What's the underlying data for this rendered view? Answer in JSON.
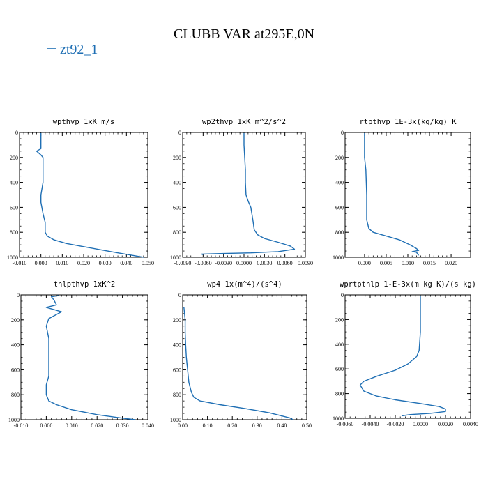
{
  "title": "CLUBB VAR at295E,0N",
  "legend": "zt92_1",
  "colors": {
    "series": "#1f6fb4",
    "axes": "#000000"
  },
  "chart_data": [
    {
      "type": "line",
      "title": "wpthvp  1xK m/s",
      "xlim": [
        -0.01,
        0.05
      ],
      "ylim": [
        0,
        1000
      ],
      "y_inverted": true,
      "xticks": [
        "-0.010",
        "0.000",
        "0.010",
        "0.020",
        "0.030",
        "0.040",
        "0.050"
      ],
      "yticks": [
        "0",
        "200",
        "400",
        "600",
        "800",
        "1000"
      ],
      "series": [
        {
          "points": [
            [
              0.0,
              5
            ],
            [
              0.0,
              130
            ],
            [
              -0.002,
              150
            ],
            [
              0.0,
              180
            ],
            [
              0.001,
              200
            ],
            [
              0.001,
              300
            ],
            [
              0.001,
              400
            ],
            [
              0.0,
              500
            ],
            [
              0.0,
              560
            ],
            [
              0.001,
              650
            ],
            [
              0.002,
              720
            ],
            [
              0.002,
              800
            ],
            [
              0.003,
              830
            ],
            [
              0.006,
              860
            ],
            [
              0.012,
              890
            ],
            [
              0.02,
              915
            ],
            [
              0.028,
              940
            ],
            [
              0.036,
              965
            ],
            [
              0.043,
              985
            ],
            [
              0.048,
              1000
            ]
          ]
        }
      ]
    },
    {
      "type": "line",
      "title": "wp2thvp  1xK m^2/s^2",
      "xlim": [
        -0.009,
        0.009
      ],
      "ylim": [
        0,
        1000
      ],
      "y_inverted": true,
      "xticks": [
        "-0.0090",
        "-0.0060",
        "-0.0030",
        "0.0000",
        "0.0030",
        "0.0060",
        "0.0090"
      ],
      "yticks": [
        "0",
        "200",
        "400",
        "600",
        "800",
        "1000"
      ],
      "series": [
        {
          "points": [
            [
              0.0,
              5
            ],
            [
              0.0,
              100
            ],
            [
              0.0001,
              200
            ],
            [
              0.0002,
              300
            ],
            [
              0.0002,
              400
            ],
            [
              0.0003,
              500
            ],
            [
              0.0006,
              550
            ],
            [
              0.001,
              600
            ],
            [
              0.0013,
              700
            ],
            [
              0.0015,
              780
            ],
            [
              0.002,
              820
            ],
            [
              0.003,
              850
            ],
            [
              0.005,
              880
            ],
            [
              0.0068,
              910
            ],
            [
              0.0074,
              935
            ],
            [
              0.005,
              955
            ],
            [
              0.001,
              965
            ],
            [
              -0.003,
              970
            ],
            [
              -0.0062,
              975
            ],
            [
              -0.006,
              980
            ]
          ]
        }
      ]
    },
    {
      "type": "line",
      "title": "rtpthvp  1E-3x(kg/kg) K",
      "xlim": [
        -0.0045,
        0.0245
      ],
      "ylim": [
        0,
        1000
      ],
      "y_inverted": true,
      "xticks": [
        "0.000",
        "0.005",
        "0.010",
        "0.015",
        "0.020"
      ],
      "yticks": [
        "0",
        "200",
        "400",
        "600",
        "800",
        "1000"
      ],
      "series": [
        {
          "points": [
            [
              0.0,
              5
            ],
            [
              0.0,
              100
            ],
            [
              0.0,
              200
            ],
            [
              0.0003,
              300
            ],
            [
              0.0004,
              400
            ],
            [
              0.0005,
              500
            ],
            [
              0.0005,
              600
            ],
            [
              0.0005,
              700
            ],
            [
              0.001,
              770
            ],
            [
              0.002,
              800
            ],
            [
              0.005,
              830
            ],
            [
              0.008,
              860
            ],
            [
              0.0105,
              900
            ],
            [
              0.012,
              930
            ],
            [
              0.0125,
              945
            ],
            [
              0.011,
              955
            ],
            [
              0.012,
              960
            ],
            [
              0.0125,
              985
            ]
          ]
        }
      ]
    },
    {
      "type": "line",
      "title": "thlpthvp  1xK^2",
      "xlim": [
        -0.01,
        0.04
      ],
      "ylim": [
        0,
        1000
      ],
      "y_inverted": true,
      "xticks": [
        "-0.010",
        "0.000",
        "0.010",
        "0.020",
        "0.030",
        "0.040"
      ],
      "yticks": [
        "0",
        "200",
        "400",
        "600",
        "800",
        "1000"
      ],
      "series": [
        {
          "points": [
            [
              0.005,
              5
            ],
            [
              0.002,
              15
            ],
            [
              0.003,
              40
            ],
            [
              0.004,
              80
            ],
            [
              0.0,
              100
            ],
            [
              0.006,
              135
            ],
            [
              0.001,
              190
            ],
            [
              0.0,
              250
            ],
            [
              0.001,
              350
            ],
            [
              0.001,
              450
            ],
            [
              0.001,
              550
            ],
            [
              0.001,
              650
            ],
            [
              0.0,
              720
            ],
            [
              0.0,
              800
            ],
            [
              0.001,
              850
            ],
            [
              0.004,
              880
            ],
            [
              0.01,
              920
            ],
            [
              0.02,
              960
            ],
            [
              0.029,
              985
            ],
            [
              0.035,
              1000
            ]
          ]
        }
      ]
    },
    {
      "type": "line",
      "title": "wp4  1x(m^4)/(s^4)",
      "xlim": [
        0.0,
        0.5
      ],
      "ylim": [
        0,
        1000
      ],
      "y_inverted": true,
      "xticks": [
        "0.00",
        "0.10",
        "0.20",
        "0.30",
        "0.40",
        "0.50"
      ],
      "yticks": [
        "0",
        "200",
        "400",
        "600",
        "800",
        "1000"
      ],
      "series": [
        {
          "points": [
            [
              0.005,
              100
            ],
            [
              0.01,
              200
            ],
            [
              0.01,
              300
            ],
            [
              0.012,
              400
            ],
            [
              0.015,
              500
            ],
            [
              0.02,
              600
            ],
            [
              0.025,
              700
            ],
            [
              0.035,
              780
            ],
            [
              0.045,
              820
            ],
            [
              0.07,
              850
            ],
            [
              0.15,
              880
            ],
            [
              0.25,
              910
            ],
            [
              0.35,
              945
            ],
            [
              0.43,
              985
            ],
            [
              0.445,
              1000
            ]
          ]
        }
      ]
    },
    {
      "type": "line",
      "title": "wprtpthlp  1-E-3x(m kg K)/(s kg)",
      "xlim": [
        -0.006,
        0.004
      ],
      "ylim": [
        0,
        1000
      ],
      "y_inverted": true,
      "xticks": [
        "-0.0060",
        "-0.0040",
        "-0.0020",
        "0.0000",
        "0.0020",
        "0.0040"
      ],
      "yticks": [
        "0",
        "200",
        "400",
        "600",
        "800",
        "1000"
      ],
      "series": [
        {
          "points": [
            [
              0.0,
              5
            ],
            [
              0.0,
              100
            ],
            [
              0.0,
              200
            ],
            [
              0.0,
              300
            ],
            [
              -0.0001,
              450
            ],
            [
              -0.0003,
              500
            ],
            [
              -0.001,
              560
            ],
            [
              -0.002,
              610
            ],
            [
              -0.0035,
              660
            ],
            [
              -0.0045,
              700
            ],
            [
              -0.0048,
              730
            ],
            [
              -0.0045,
              780
            ],
            [
              -0.0035,
              820
            ],
            [
              -0.002,
              850
            ],
            [
              0.0,
              880
            ],
            [
              0.0015,
              905
            ],
            [
              0.002,
              925
            ],
            [
              0.002,
              945
            ],
            [
              0.0008,
              960
            ],
            [
              -0.0008,
              970
            ],
            [
              -0.0015,
              980
            ]
          ]
        }
      ]
    }
  ]
}
